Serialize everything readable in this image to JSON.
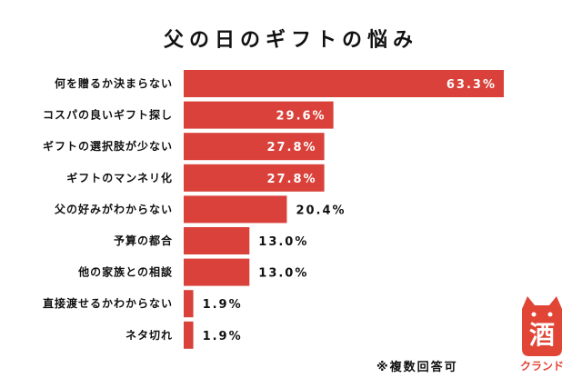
{
  "chart_data": {
    "type": "bar",
    "orientation": "horizontal",
    "title": "父の日のギフトの悩み",
    "categories": [
      "何を贈るか決まらない",
      "コスパの良いギフト探し",
      "ギフトの選択肢が少ない",
      "ギフトのマンネリ化",
      "父の好みがわからない",
      "予算の都合",
      "他の家族との相談",
      "直接渡せるかわからない",
      "ネタ切れ"
    ],
    "values": [
      63.3,
      29.6,
      27.8,
      27.8,
      20.4,
      13.0,
      13.0,
      1.9,
      1.9
    ],
    "value_labels": [
      "63.3%",
      "29.6%",
      "27.8%",
      "27.8%",
      "20.4%",
      "13.0%",
      "13.0%",
      "1.9%",
      "1.9%"
    ],
    "xlim": [
      0,
      63.3
    ],
    "bar_color": "#d9413a",
    "grid": false,
    "legend": "none"
  },
  "footnote": "※複数回答可",
  "logo": {
    "kanji": "酒",
    "text": "クランド",
    "color": "#e04535"
  }
}
